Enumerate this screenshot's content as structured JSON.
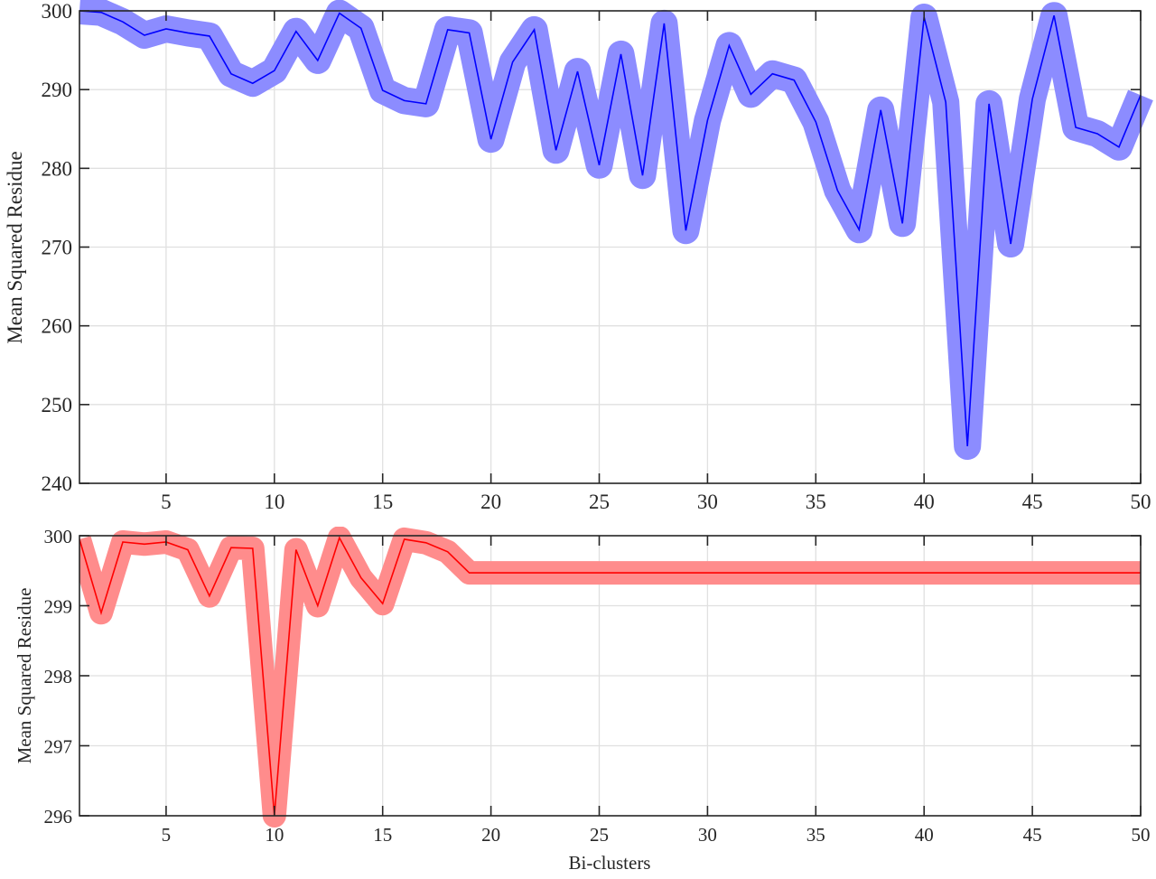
{
  "chart_data": [
    {
      "type": "line",
      "panel": "top",
      "title": "",
      "xlabel": "",
      "ylabel": "Mean Squared Residue",
      "xlim": [
        1,
        50
      ],
      "ylim": [
        240,
        300
      ],
      "xticks": [
        5,
        10,
        15,
        20,
        25,
        30,
        35,
        40,
        45,
        50
      ],
      "yticks": [
        240,
        250,
        260,
        270,
        280,
        290,
        300
      ],
      "grid": true,
      "legend": null,
      "series": [
        {
          "name": "blue",
          "line_color": "#0000ff",
          "band_color": "#8c8cff",
          "x": [
            1,
            2,
            3,
            4,
            5,
            6,
            7,
            8,
            9,
            10,
            11,
            12,
            13,
            14,
            15,
            16,
            17,
            18,
            19,
            20,
            21,
            22,
            23,
            24,
            25,
            26,
            27,
            28,
            29,
            30,
            31,
            32,
            33,
            34,
            35,
            36,
            37,
            38,
            39,
            40,
            41,
            42,
            43,
            44,
            45,
            46,
            47,
            48,
            49,
            50
          ],
          "values": [
            300.0,
            299.8,
            298.6,
            296.9,
            297.7,
            297.2,
            296.8,
            292.0,
            290.8,
            292.4,
            297.4,
            293.7,
            299.7,
            297.8,
            289.9,
            288.6,
            288.2,
            297.6,
            297.2,
            283.7,
            293.5,
            297.6,
            282.3,
            292.3,
            280.4,
            294.5,
            279.1,
            298.4,
            272.1,
            286.1,
            295.6,
            289.4,
            292.0,
            291.2,
            285.9,
            277.2,
            272.2,
            287.4,
            273.0,
            299.2,
            288.4,
            244.7,
            288.2,
            270.4,
            288.8,
            299.4,
            285.2,
            284.4,
            282.7,
            289.3
          ]
        }
      ]
    },
    {
      "type": "line",
      "panel": "bottom",
      "title": "",
      "xlabel": "Bi-clusters",
      "ylabel": "Mean Squared Residue",
      "xlim": [
        1,
        50
      ],
      "ylim": [
        296,
        300
      ],
      "xticks": [
        5,
        10,
        15,
        20,
        25,
        30,
        35,
        40,
        45,
        50
      ],
      "yticks": [
        296,
        297,
        298,
        299,
        300
      ],
      "grid": true,
      "legend": null,
      "series": [
        {
          "name": "red",
          "line_color": "#ff0000",
          "band_color": "#ff8c8c",
          "x": [
            1,
            2,
            3,
            4,
            5,
            6,
            7,
            8,
            9,
            10,
            11,
            12,
            13,
            14,
            15,
            16,
            17,
            18,
            19,
            20,
            21,
            22,
            23,
            24,
            25,
            26,
            27,
            28,
            29,
            30,
            31,
            32,
            33,
            34,
            35,
            36,
            37,
            38,
            39,
            40,
            41,
            42,
            43,
            44,
            45,
            46,
            47,
            48,
            49,
            50
          ],
          "values": [
            299.95,
            298.9,
            299.91,
            299.88,
            299.91,
            299.8,
            299.14,
            299.83,
            299.82,
            296.0,
            299.8,
            299.0,
            299.97,
            299.4,
            299.03,
            299.95,
            299.9,
            299.77,
            299.47,
            299.47,
            299.47,
            299.47,
            299.47,
            299.47,
            299.47,
            299.47,
            299.47,
            299.47,
            299.47,
            299.47,
            299.47,
            299.47,
            299.47,
            299.47,
            299.47,
            299.47,
            299.47,
            299.47,
            299.47,
            299.47,
            299.47,
            299.47,
            299.47,
            299.47,
            299.47,
            299.47,
            299.47,
            299.47,
            299.47,
            299.47
          ]
        }
      ]
    }
  ],
  "labels": {
    "top_ylabel": "Mean Squared Residue",
    "bottom_ylabel": "Mean Squared Residue",
    "bottom_xlabel": "Bi-clusters"
  }
}
